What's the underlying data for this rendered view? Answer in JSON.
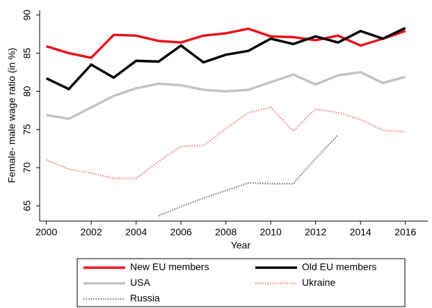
{
  "chart_data": {
    "type": "line",
    "x_label": "Year",
    "y_label": "Female- male wage ratio (in %)",
    "x": [
      2000,
      2001,
      2002,
      2003,
      2004,
      2005,
      2006,
      2007,
      2008,
      2009,
      2010,
      2011,
      2012,
      2013,
      2014,
      2015,
      2016
    ],
    "xlim": [
      1999.7,
      2017
    ],
    "xticks": [
      2000,
      2002,
      2004,
      2006,
      2008,
      2010,
      2012,
      2014,
      2016
    ],
    "ylim": [
      63,
      90.6
    ],
    "yticks": [
      65,
      70,
      75,
      80,
      85,
      90
    ],
    "grid": false,
    "legend": "bottom",
    "series": [
      {
        "name": "New EU members",
        "color": "#e8141b",
        "style": "solid",
        "values": [
          85.9,
          85.0,
          84.4,
          87.4,
          87.3,
          86.6,
          86.4,
          87.3,
          87.6,
          88.2,
          87.2,
          87.1,
          86.7,
          87.3,
          86.0,
          86.9,
          87.9
        ]
      },
      {
        "name": "Old EU members",
        "color": "#000000",
        "style": "solid",
        "values": [
          81.7,
          80.3,
          83.5,
          81.8,
          84.0,
          83.9,
          86.0,
          83.8,
          84.8,
          85.3,
          86.9,
          86.2,
          87.2,
          86.4,
          87.9,
          86.9,
          88.3
        ]
      },
      {
        "name": "USA",
        "color": "#c4c4c4",
        "style": "solid",
        "values": [
          76.9,
          76.4,
          77.9,
          79.4,
          80.4,
          81.0,
          80.8,
          80.2,
          80.0,
          80.2,
          81.2,
          82.2,
          80.9,
          82.1,
          82.5,
          81.1,
          81.9
        ]
      },
      {
        "name": "Ukraine",
        "color": "#f08c8c",
        "style": "dotted",
        "values": [
          71.0,
          69.8,
          69.3,
          68.6,
          68.6,
          70.8,
          72.8,
          72.9,
          75.1,
          77.2,
          77.9,
          74.8,
          77.7,
          77.2,
          76.3,
          74.9,
          74.7
        ]
      },
      {
        "name": "Russia",
        "color": "#808080",
        "style": "dotted",
        "values": [
          null,
          null,
          null,
          null,
          null,
          63.7,
          64.9,
          66.0,
          67.0,
          68.0,
          67.9,
          67.9,
          71.2,
          74.3,
          null,
          null,
          null
        ]
      }
    ]
  }
}
